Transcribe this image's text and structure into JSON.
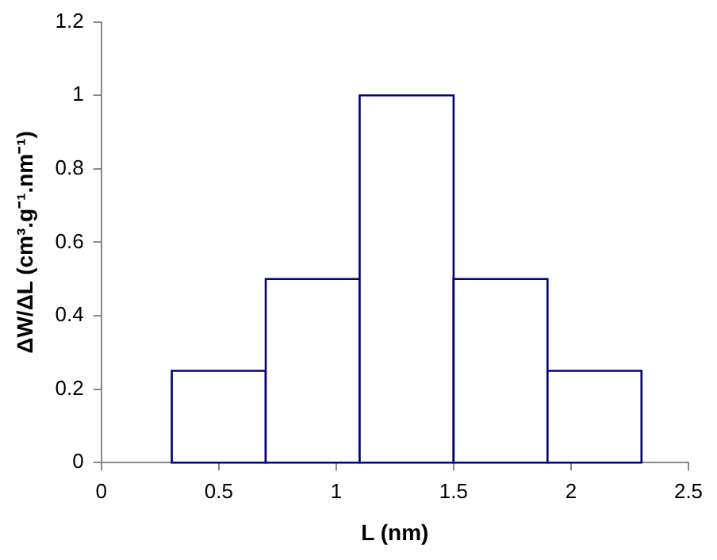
{
  "chart_data": {
    "type": "histogram",
    "xlabel": "L (nm)",
    "ylabel": "ΔW/ΔL (cm³.g⁻¹.nm⁻¹)",
    "bins": [
      0.3,
      0.7,
      1.1,
      1.5,
      1.9,
      2.3
    ],
    "values": [
      0.25,
      0.5,
      1,
      0.5,
      0.25
    ],
    "color": "#000080",
    "xlim": [
      0,
      2.5
    ],
    "xticks": [
      0,
      0.5,
      1,
      1.5,
      2,
      2.5
    ],
    "ylim": [
      0,
      1.2
    ],
    "yticks": [
      0,
      0.2,
      0.4,
      0.6,
      0.8,
      1,
      1.2
    ],
    "grid": false,
    "legend": false
  }
}
